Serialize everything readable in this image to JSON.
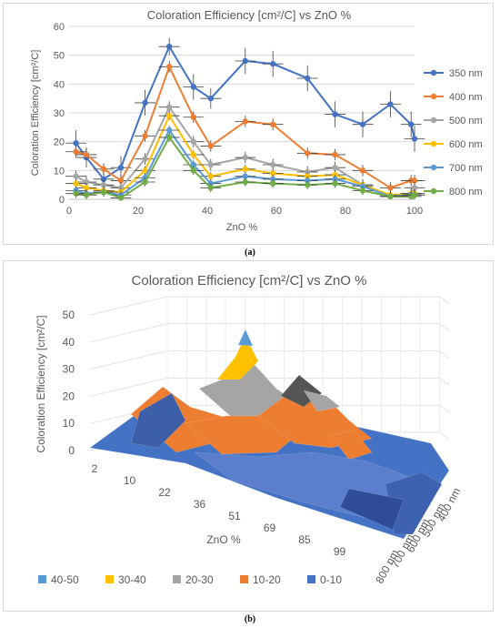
{
  "chart_data": [
    {
      "type": "line",
      "title": "Coloration Efficiency [cm²/C] vs ZnO %",
      "xlabel": "ZnO %",
      "ylabel": "Coloration Efficiency [cm²/C]",
      "xlim": [
        0,
        100
      ],
      "ylim": [
        0,
        60
      ],
      "x_ticks": [
        0,
        20,
        40,
        60,
        80,
        100
      ],
      "y_ticks": [
        0,
        10,
        20,
        30,
        40,
        50,
        60
      ],
      "grid": true,
      "legend_position": "right",
      "error_bars": true,
      "x": [
        2,
        5,
        10,
        15,
        22,
        29,
        36,
        41,
        51,
        59,
        69,
        77,
        85,
        93,
        99,
        100
      ],
      "series": [
        {
          "name": "350 nm",
          "color": "#4472C4",
          "values": [
            19.5,
            14.5,
            7,
            11,
            33.5,
            53,
            39,
            35,
            48,
            47,
            42,
            29.5,
            26,
            33,
            26,
            21
          ]
        },
        {
          "name": "400 nm",
          "color": "#ED7D31",
          "values": [
            16.5,
            15.5,
            10.5,
            6.5,
            22,
            46,
            28.5,
            18.5,
            27,
            26,
            16,
            15.5,
            10,
            4,
            6.5,
            6.5
          ]
        },
        {
          "name": "500 nm",
          "color": "#A5A5A5",
          "values": [
            8,
            6,
            5,
            4,
            14,
            32,
            20,
            12,
            14.5,
            12,
            9.5,
            11,
            5,
            1,
            2,
            4
          ]
        },
        {
          "name": "600 nm",
          "color": "#FFC000",
          "values": [
            5.5,
            4,
            3,
            2.5,
            10,
            29,
            15.5,
            8,
            10.5,
            9,
            8,
            8.5,
            5,
            1.5,
            2,
            2
          ]
        },
        {
          "name": "700 nm",
          "color": "#5B9BD5",
          "values": [
            3,
            2,
            2.5,
            1.5,
            7.5,
            24,
            12,
            5.5,
            8,
            7,
            6.5,
            7,
            4.5,
            1,
            1.5,
            1.5
          ]
        },
        {
          "name": "800 nm",
          "color": "#70AD47",
          "values": [
            2,
            1.5,
            2.5,
            0.5,
            6,
            21.5,
            10,
            4,
            6,
            5.5,
            5,
            5.5,
            3,
            1,
            1,
            1.5
          ]
        }
      ],
      "error": [
        [
          4.5,
          3.5,
          3,
          4,
          4.5,
          3,
          4.5,
          3.5,
          4.5,
          4.5,
          4.5,
          4.5,
          4.5,
          4.5,
          4.5,
          4.5
        ],
        [
          2,
          2,
          2,
          2,
          2,
          2,
          2,
          2,
          2,
          2,
          2,
          2,
          2,
          2,
          2,
          2
        ],
        [
          2,
          2,
          2,
          2,
          2,
          2,
          2,
          2,
          2,
          2,
          2,
          2,
          2,
          2,
          2,
          2
        ],
        [
          1.5,
          1.5,
          1.5,
          1.5,
          1.5,
          1.5,
          1.5,
          1.5,
          1.5,
          1.5,
          1.5,
          1.5,
          1.5,
          1.5,
          1.5,
          1.5
        ],
        [
          1.5,
          1.5,
          1.5,
          1.5,
          1.5,
          1.5,
          1.5,
          1.5,
          1.5,
          1.5,
          1.5,
          1.5,
          1.5,
          1.5,
          1.5,
          1.5
        ],
        [
          1.5,
          1.5,
          1.5,
          1.5,
          1.5,
          1.5,
          1.5,
          1.5,
          1.5,
          1.5,
          1.5,
          1.5,
          1.5,
          1.5,
          1.5,
          1.5
        ]
      ],
      "x_error": 3
    },
    {
      "type": "surface",
      "title": "Coloration Efficiency [cm²/C] vs ZnO %",
      "xlabel": "ZnO %",
      "ylabel": "Coloration Efficiency [cm²/C]",
      "x_tick_labels": [
        "2",
        "10",
        "22",
        "36",
        "51",
        "69",
        "85",
        "99"
      ],
      "depth_tick_labels": [
        "800 nm",
        "700 nm",
        "600 nm",
        "500 nm",
        "400 nm"
      ],
      "z_ticks": [
        0,
        10,
        20,
        30,
        40,
        50
      ],
      "zlim": [
        0,
        50
      ],
      "legend_position": "bottom",
      "bands": [
        {
          "name": "40-50",
          "color": "#5B9BD5"
        },
        {
          "name": "30-40",
          "color": "#FFC000"
        },
        {
          "name": "20-30",
          "color": "#A5A5A5"
        },
        {
          "name": "10-20",
          "color": "#ED7D31"
        },
        {
          "name": "0-10",
          "color": "#4472C4"
        }
      ]
    }
  ],
  "captions": {
    "a": "(a)",
    "b": "(b)"
  }
}
